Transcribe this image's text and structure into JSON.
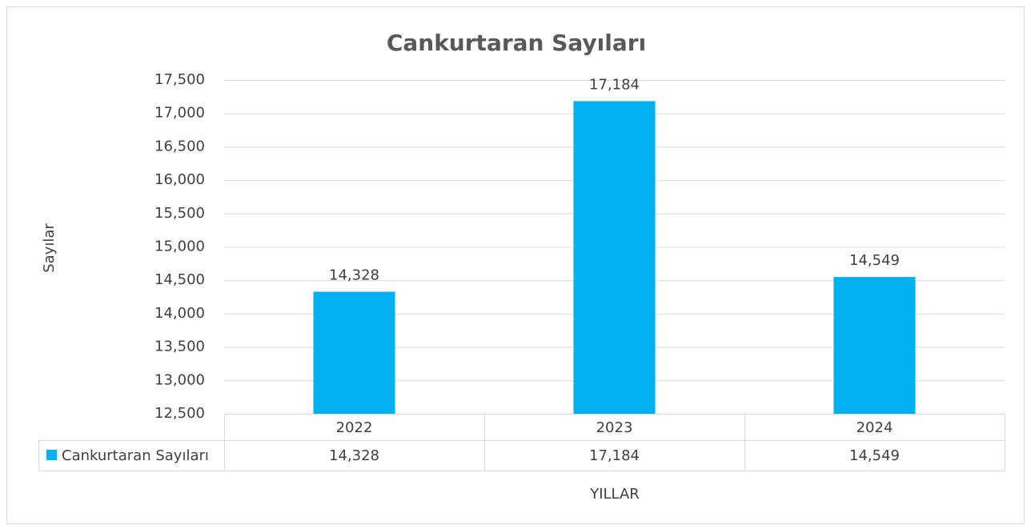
{
  "chart_data": {
    "type": "bar",
    "title": "Cankurtaran Sayıları",
    "x_label": "YILLAR",
    "y_label": "Sayılar",
    "categories": [
      "2022",
      "2023",
      "2024"
    ],
    "series": [
      {
        "name": "Cankurtaran Sayıları",
        "color": "#00b0f0",
        "values": [
          14328,
          17184,
          14549
        ],
        "value_labels": [
          "14,328",
          "17,184",
          "14,549"
        ]
      }
    ],
    "ylim": [
      12500,
      17500
    ],
    "yticks": [
      {
        "value": 12500,
        "label": "12,500"
      },
      {
        "value": 13000,
        "label": "13,000"
      },
      {
        "value": 13500,
        "label": "13,500"
      },
      {
        "value": 14000,
        "label": "14,000"
      },
      {
        "value": 14500,
        "label": "14,500"
      },
      {
        "value": 15000,
        "label": "15,000"
      },
      {
        "value": 15500,
        "label": "15,500"
      },
      {
        "value": 16000,
        "label": "16,000"
      },
      {
        "value": 16500,
        "label": "16,500"
      },
      {
        "value": 17000,
        "label": "17,000"
      },
      {
        "value": 17500,
        "label": "17,500"
      }
    ],
    "grid": true,
    "data_table": true
  }
}
